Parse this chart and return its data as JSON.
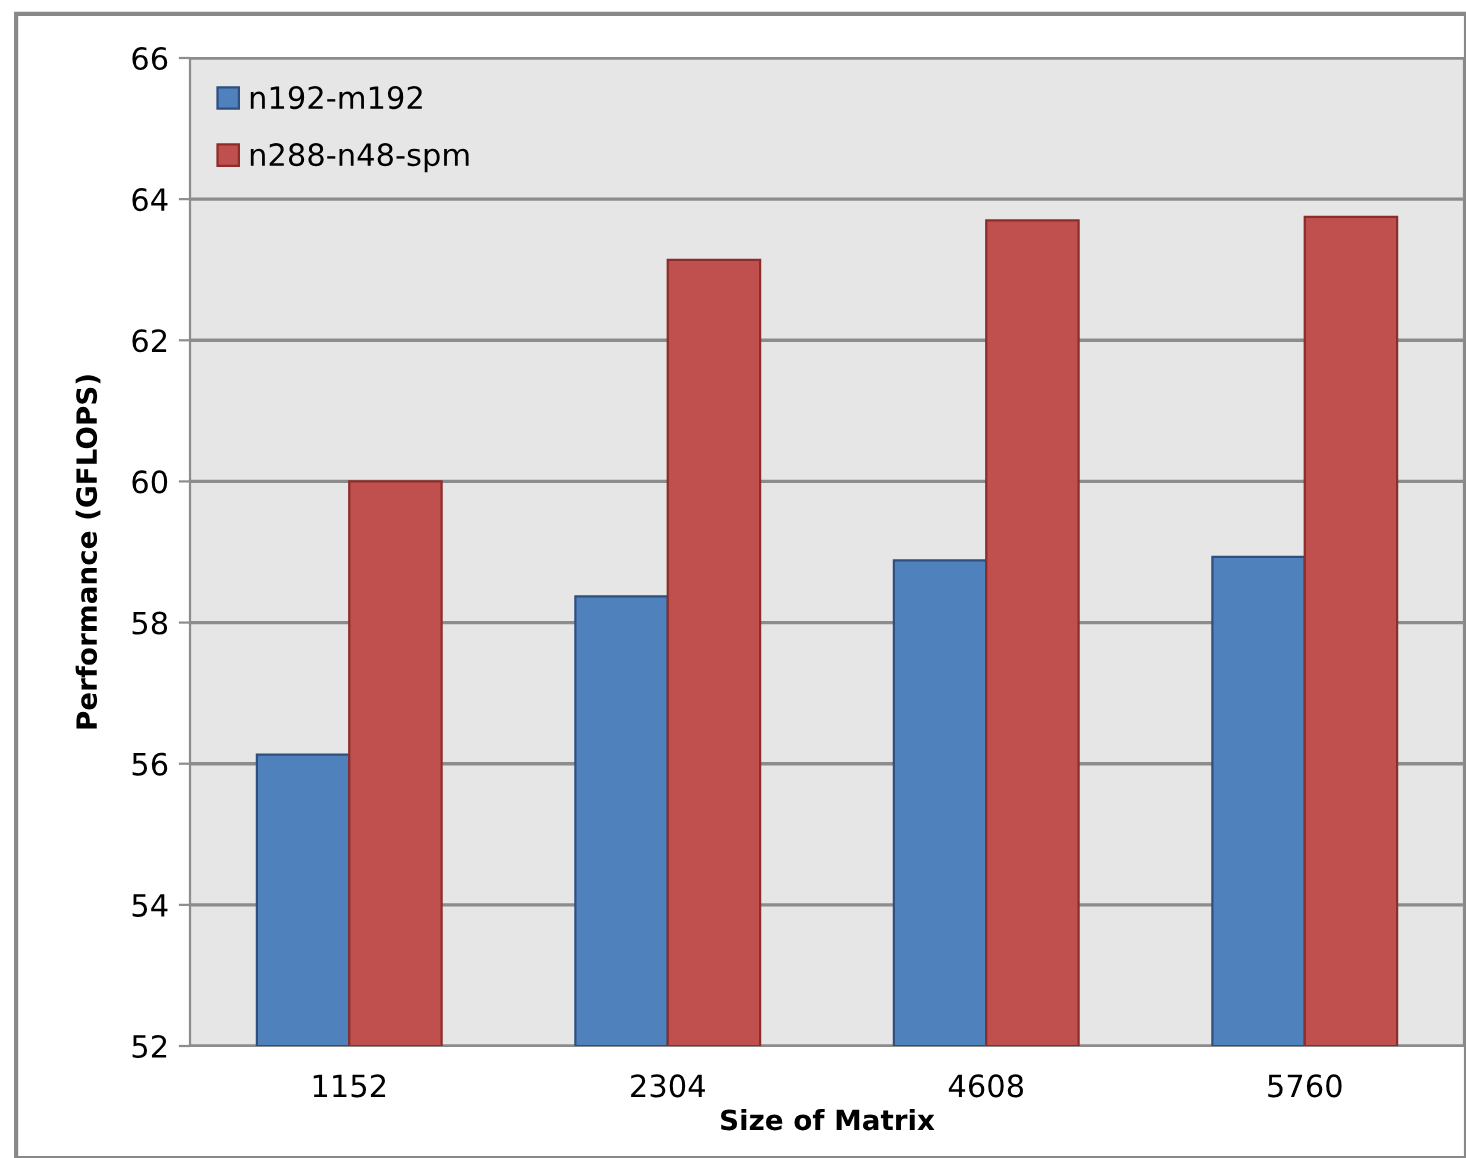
{
  "chart_data": {
    "type": "bar",
    "xlabel": "Size of Matrix",
    "ylabel": "Performance (GFLOPS)",
    "categories": [
      "1152",
      "2304",
      "4608",
      "5760"
    ],
    "series": [
      {
        "name": "n192-m192",
        "color": "#4f81bd",
        "values": [
          56.13,
          58.37,
          58.88,
          58.93
        ]
      },
      {
        "name": "n288-n48-spm",
        "color": "#c0504d",
        "values": [
          60.0,
          63.14,
          63.7,
          63.75
        ]
      }
    ],
    "ylim": [
      52,
      66
    ],
    "yticks": [
      52,
      54,
      56,
      58,
      60,
      62,
      64,
      66
    ],
    "grid": "y",
    "legend": "top left"
  }
}
